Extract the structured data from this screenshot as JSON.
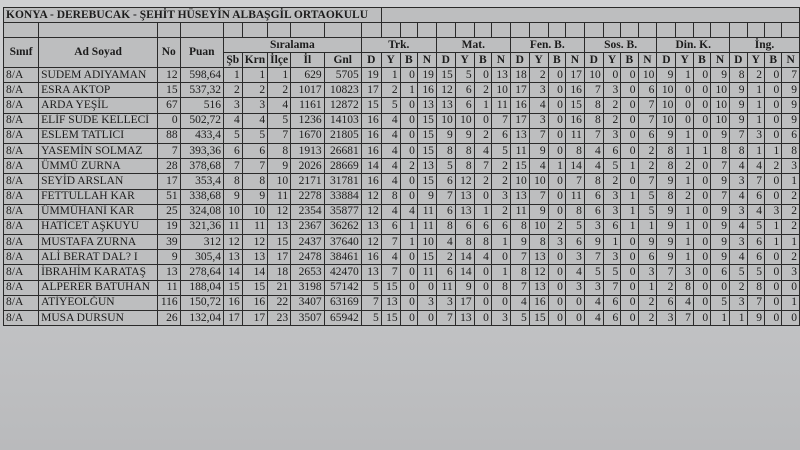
{
  "title": "KONYA - DEREBUCAK - ŞEHİT HÜSEYİN ALBAŞGİL ORTAOKULU",
  "headers": {
    "sinif": "Sınıf",
    "ad_soyad": "Ad Soyad",
    "no": "No",
    "puan": "Puan",
    "siralama": "Sıralama",
    "siralama_sub": [
      "Şb",
      "Krn",
      "İlçe",
      "İl",
      "Gnl"
    ],
    "subjects": [
      "Trk.",
      "Mat.",
      "Fen. B.",
      "Sos. B.",
      "Din. K.",
      "İng."
    ],
    "subject_sub": [
      "D",
      "Y",
      "B",
      "N"
    ]
  },
  "rows": [
    {
      "sinif": "8/A",
      "ad": "SUDEM ADIYAMAN",
      "no": "12",
      "puan": "598,64",
      "sira": [
        "1",
        "1",
        "1",
        "629",
        "5705"
      ],
      "scores": [
        [
          19,
          1,
          0,
          19
        ],
        [
          15,
          5,
          0,
          13
        ],
        [
          18,
          2,
          0,
          17
        ],
        [
          10,
          0,
          0,
          10
        ],
        [
          9,
          1,
          0,
          9
        ],
        [
          8,
          2,
          0,
          7
        ]
      ]
    },
    {
      "sinif": "8/A",
      "ad": "ESRA AKTOP",
      "no": "15",
      "puan": "537,32",
      "sira": [
        "2",
        "2",
        "2",
        "1017",
        "10823"
      ],
      "scores": [
        [
          17,
          2,
          1,
          16
        ],
        [
          12,
          6,
          2,
          10
        ],
        [
          17,
          3,
          0,
          16
        ],
        [
          7,
          3,
          0,
          6
        ],
        [
          10,
          0,
          0,
          10
        ],
        [
          9,
          1,
          0,
          9
        ]
      ]
    },
    {
      "sinif": "8/A",
      "ad": "ARDA YEŞİL",
      "no": "67",
      "puan": "516",
      "sira": [
        "3",
        "3",
        "4",
        "1161",
        "12872"
      ],
      "scores": [
        [
          15,
          5,
          0,
          13
        ],
        [
          13,
          6,
          1,
          11
        ],
        [
          16,
          4,
          0,
          15
        ],
        [
          8,
          2,
          0,
          7
        ],
        [
          10,
          0,
          0,
          10
        ],
        [
          9,
          1,
          0,
          9
        ]
      ]
    },
    {
      "sinif": "8/A",
      "ad": "ELİF SUDE KELLECİ",
      "no": "0",
      "puan": "502,72",
      "sira": [
        "4",
        "4",
        "5",
        "1236",
        "14103"
      ],
      "scores": [
        [
          16,
          4,
          0,
          15
        ],
        [
          10,
          10,
          0,
          7
        ],
        [
          17,
          3,
          0,
          16
        ],
        [
          8,
          2,
          0,
          7
        ],
        [
          10,
          0,
          0,
          10
        ],
        [
          9,
          1,
          0,
          9
        ]
      ]
    },
    {
      "sinif": "8/A",
      "ad": "ESLEM TATLICI",
      "no": "88",
      "puan": "433,4",
      "sira": [
        "5",
        "5",
        "7",
        "1670",
        "21805"
      ],
      "scores": [
        [
          16,
          4,
          0,
          15
        ],
        [
          9,
          9,
          2,
          6
        ],
        [
          13,
          7,
          0,
          11
        ],
        [
          7,
          3,
          0,
          6
        ],
        [
          9,
          1,
          0,
          9
        ],
        [
          7,
          3,
          0,
          6
        ]
      ]
    },
    {
      "sinif": "8/A",
      "ad": "YASEMİN SOLMAZ",
      "no": "7",
      "puan": "393,36",
      "sira": [
        "6",
        "6",
        "8",
        "1913",
        "26681"
      ],
      "scores": [
        [
          16,
          4,
          0,
          15
        ],
        [
          8,
          8,
          4,
          5
        ],
        [
          11,
          9,
          0,
          8
        ],
        [
          4,
          6,
          0,
          2
        ],
        [
          8,
          1,
          1,
          8
        ],
        [
          8,
          1,
          1,
          8
        ]
      ]
    },
    {
      "sinif": "8/A",
      "ad": "ÜMMÜ ZURNA",
      "no": "28",
      "puan": "378,68",
      "sira": [
        "7",
        "7",
        "9",
        "2026",
        "28669"
      ],
      "scores": [
        [
          14,
          4,
          2,
          13
        ],
        [
          5,
          8,
          7,
          2
        ],
        [
          15,
          4,
          1,
          14
        ],
        [
          4,
          5,
          1,
          2
        ],
        [
          8,
          2,
          0,
          7
        ],
        [
          4,
          4,
          2,
          3
        ]
      ]
    },
    {
      "sinif": "8/A",
      "ad": "SEYİD ARSLAN",
      "no": "17",
      "puan": "353,4",
      "sira": [
        "8",
        "8",
        "10",
        "2171",
        "31781"
      ],
      "scores": [
        [
          16,
          4,
          0,
          15
        ],
        [
          6,
          12,
          2,
          2
        ],
        [
          10,
          10,
          0,
          7
        ],
        [
          8,
          2,
          0,
          7
        ],
        [
          9,
          1,
          0,
          9
        ],
        [
          3,
          7,
          0,
          1
        ]
      ]
    },
    {
      "sinif": "8/A",
      "ad": "FETTULLAH KAR",
      "no": "51",
      "puan": "338,68",
      "sira": [
        "9",
        "9",
        "11",
        "2278",
        "33884"
      ],
      "scores": [
        [
          12,
          8,
          0,
          9
        ],
        [
          7,
          13,
          0,
          3
        ],
        [
          13,
          7,
          0,
          11
        ],
        [
          6,
          3,
          1,
          5
        ],
        [
          8,
          2,
          0,
          7
        ],
        [
          4,
          6,
          0,
          2
        ]
      ]
    },
    {
      "sinif": "8/A",
      "ad": "ÜMMÜHANİ KAR",
      "no": "25",
      "puan": "324,08",
      "sira": [
        "10",
        "10",
        "12",
        "2354",
        "35877"
      ],
      "scores": [
        [
          12,
          4,
          4,
          11
        ],
        [
          6,
          13,
          1,
          2
        ],
        [
          11,
          9,
          0,
          8
        ],
        [
          6,
          3,
          1,
          5
        ],
        [
          9,
          1,
          0,
          9
        ],
        [
          3,
          4,
          3,
          2
        ]
      ]
    },
    {
      "sinif": "8/A",
      "ad": "HATİCET AŞKUYU",
      "no": "19",
      "puan": "321,36",
      "sira": [
        "11",
        "11",
        "13",
        "2367",
        "36262"
      ],
      "scores": [
        [
          13,
          6,
          1,
          11
        ],
        [
          8,
          6,
          6,
          6
        ],
        [
          8,
          10,
          2,
          5
        ],
        [
          3,
          6,
          1,
          1
        ],
        [
          9,
          1,
          0,
          9
        ],
        [
          4,
          5,
          1,
          2
        ]
      ]
    },
    {
      "sinif": "8/A",
      "ad": "MUSTAFA ZURNA",
      "no": "39",
      "puan": "312",
      "sira": [
        "12",
        "12",
        "15",
        "2437",
        "37640"
      ],
      "scores": [
        [
          12,
          7,
          1,
          10
        ],
        [
          4,
          8,
          8,
          1
        ],
        [
          9,
          8,
          3,
          6
        ],
        [
          9,
          1,
          0,
          9
        ],
        [
          9,
          1,
          0,
          9
        ],
        [
          3,
          6,
          1,
          1
        ]
      ]
    },
    {
      "sinif": "8/A",
      "ad": "ALİ BERAT DAL? I",
      "no": "9",
      "puan": "305,4",
      "sira": [
        "13",
        "13",
        "17",
        "2478",
        "38461"
      ],
      "scores": [
        [
          16,
          4,
          0,
          15
        ],
        [
          2,
          14,
          4,
          0
        ],
        [
          7,
          13,
          0,
          3
        ],
        [
          7,
          3,
          0,
          6
        ],
        [
          9,
          1,
          0,
          9
        ],
        [
          4,
          6,
          0,
          2
        ]
      ]
    },
    {
      "sinif": "8/A",
      "ad": "İBRAHİM KARATAŞ",
      "no": "13",
      "puan": "278,64",
      "sira": [
        "14",
        "14",
        "18",
        "2653",
        "42470"
      ],
      "scores": [
        [
          13,
          7,
          0,
          11
        ],
        [
          6,
          14,
          0,
          1
        ],
        [
          8,
          12,
          0,
          4
        ],
        [
          5,
          5,
          0,
          3
        ],
        [
          7,
          3,
          0,
          6
        ],
        [
          5,
          5,
          0,
          3
        ]
      ]
    },
    {
      "sinif": "8/A",
      "ad": "ALPERER BATUHAN",
      "no": "11",
      "puan": "188,04",
      "sira": [
        "15",
        "15",
        "21",
        "3198",
        "57142"
      ],
      "scores": [
        [
          5,
          15,
          0,
          0
        ],
        [
          11,
          9,
          0,
          8
        ],
        [
          7,
          13,
          0,
          3
        ],
        [
          3,
          7,
          0,
          1
        ],
        [
          2,
          8,
          0,
          0
        ],
        [
          2,
          8,
          0,
          0
        ]
      ]
    },
    {
      "sinif": "8/A",
      "ad": "ATİYEOLĞUN",
      "no": "116",
      "puan": "150,72",
      "sira": [
        "16",
        "16",
        "22",
        "3407",
        "63169"
      ],
      "scores": [
        [
          7,
          13,
          0,
          3
        ],
        [
          3,
          17,
          0,
          0
        ],
        [
          4,
          16,
          0,
          0
        ],
        [
          4,
          6,
          0,
          2
        ],
        [
          6,
          4,
          0,
          5
        ],
        [
          3,
          7,
          0,
          1
        ]
      ]
    },
    {
      "sinif": "8/A",
      "ad": "MUSA DURSUN",
      "no": "26",
      "puan": "132,04",
      "sira": [
        "17",
        "17",
        "23",
        "3507",
        "65942"
      ],
      "scores": [
        [
          5,
          15,
          0,
          0
        ],
        [
          7,
          13,
          0,
          3
        ],
        [
          5,
          15,
          0,
          0
        ],
        [
          4,
          6,
          0,
          2
        ],
        [
          3,
          7,
          0,
          1
        ],
        [
          1,
          9,
          0,
          0
        ]
      ]
    }
  ]
}
